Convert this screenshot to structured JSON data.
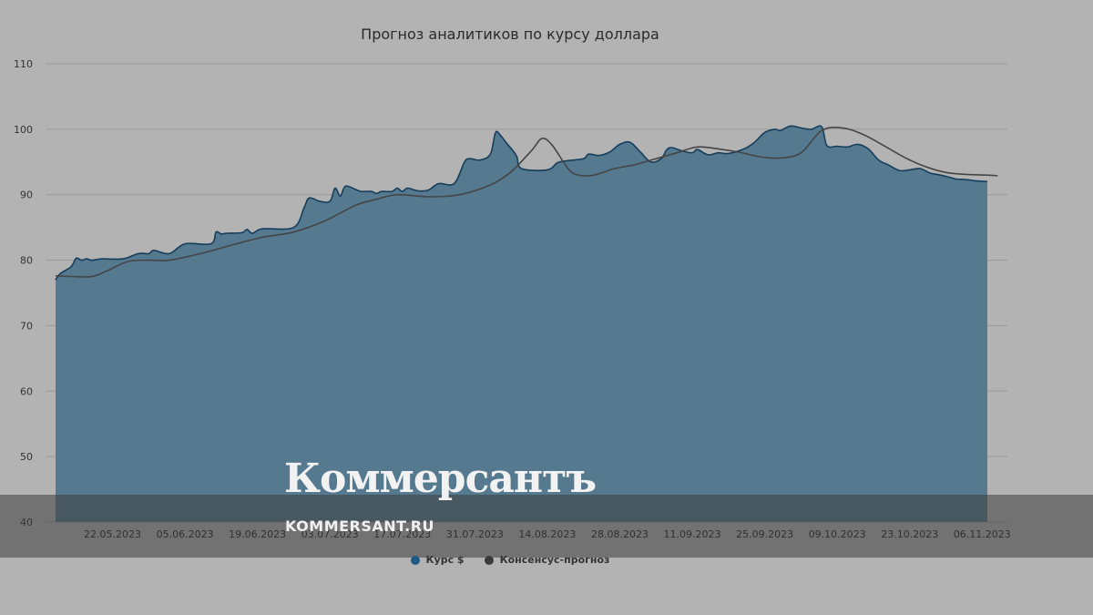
{
  "chart_data": {
    "type": "area",
    "title": "Прогноз аналитиков по курсу доллара",
    "ylim": [
      40,
      110
    ],
    "yticks": [
      40,
      50,
      60,
      70,
      80,
      90,
      100,
      110
    ],
    "grid": true,
    "legend_position": "bottom",
    "x_tick_labels": [
      "22.05.2023",
      "05.06.2023",
      "19.06.2023",
      "03.07.2023",
      "17.07.2023",
      "31.07.2023",
      "14.08.2023",
      "28.08.2023",
      "11.09.2023",
      "25.09.2023",
      "09.10.2023",
      "23.10.2023",
      "06.11.2023"
    ],
    "x_tick_day_index": [
      11,
      25,
      39,
      53,
      67,
      81,
      95,
      109,
      123,
      137,
      151,
      165,
      179
    ],
    "series": [
      {
        "name": "Курс $",
        "color": "#2e5a7c",
        "points": [
          [
            0,
            77.0
          ],
          [
            1,
            78.0
          ],
          [
            3,
            79.0
          ],
          [
            4,
            80.3
          ],
          [
            5,
            80.0
          ],
          [
            6,
            80.2
          ],
          [
            7,
            80.0
          ],
          [
            9,
            80.2
          ],
          [
            13,
            80.2
          ],
          [
            16,
            81.0
          ],
          [
            18,
            81.0
          ],
          [
            19,
            81.5
          ],
          [
            22,
            81.0
          ],
          [
            25,
            82.5
          ],
          [
            30,
            82.5
          ],
          [
            31,
            84.3
          ],
          [
            32,
            84.0
          ],
          [
            33,
            84.1
          ],
          [
            36,
            84.2
          ],
          [
            37,
            84.7
          ],
          [
            38,
            84.1
          ],
          [
            40,
            84.8
          ],
          [
            46,
            85.0
          ],
          [
            48,
            88.0
          ],
          [
            49,
            89.5
          ],
          [
            51,
            89.0
          ],
          [
            53,
            89.0
          ],
          [
            54,
            91.0
          ],
          [
            55,
            89.8
          ],
          [
            56,
            91.3
          ],
          [
            58,
            90.8
          ],
          [
            59,
            90.5
          ],
          [
            61,
            90.5
          ],
          [
            62,
            90.2
          ],
          [
            63,
            90.5
          ],
          [
            65,
            90.5
          ],
          [
            66,
            91.0
          ],
          [
            67,
            90.5
          ],
          [
            68,
            91.0
          ],
          [
            70,
            90.6
          ],
          [
            72,
            90.7
          ],
          [
            74,
            91.7
          ],
          [
            77,
            91.7
          ],
          [
            79,
            95.0
          ],
          [
            80,
            95.5
          ],
          [
            82,
            95.3
          ],
          [
            84,
            96.2
          ],
          [
            85,
            99.5
          ],
          [
            86,
            99.0
          ],
          [
            87,
            98.0
          ],
          [
            89,
            96.0
          ],
          [
            90,
            94.0
          ],
          [
            95,
            93.8
          ],
          [
            97,
            94.9
          ],
          [
            99,
            95.2
          ],
          [
            102,
            95.5
          ],
          [
            103,
            96.2
          ],
          [
            105,
            96.0
          ],
          [
            107,
            96.5
          ],
          [
            109,
            97.7
          ],
          [
            111,
            98.0
          ],
          [
            113,
            96.5
          ],
          [
            115,
            95.0
          ],
          [
            117,
            95.5
          ],
          [
            118,
            96.8
          ],
          [
            119,
            97.2
          ],
          [
            121,
            96.7
          ],
          [
            123,
            96.4
          ],
          [
            124,
            96.9
          ],
          [
            126,
            96.1
          ],
          [
            128,
            96.4
          ],
          [
            130,
            96.3
          ],
          [
            133,
            97.0
          ],
          [
            135,
            98.0
          ],
          [
            137,
            99.5
          ],
          [
            139,
            100.0
          ],
          [
            140,
            99.8
          ],
          [
            142,
            100.5
          ],
          [
            144,
            100.2
          ],
          [
            146,
            100.0
          ],
          [
            148,
            100.4
          ],
          [
            149,
            97.5
          ],
          [
            151,
            97.4
          ],
          [
            153,
            97.3
          ],
          [
            155,
            97.7
          ],
          [
            157,
            97.0
          ],
          [
            159,
            95.3
          ],
          [
            161,
            94.5
          ],
          [
            163,
            93.7
          ],
          [
            165,
            93.8
          ],
          [
            167,
            94.0
          ],
          [
            169,
            93.3
          ],
          [
            171,
            93.0
          ],
          [
            173,
            92.6
          ],
          [
            174,
            92.4
          ],
          [
            176,
            92.3
          ],
          [
            178,
            92.1
          ],
          [
            180,
            92.0
          ]
        ]
      },
      {
        "name": "Консенсус-прогноз",
        "color": "#474747",
        "points": [
          [
            0,
            77.6
          ],
          [
            3,
            77.5
          ],
          [
            7,
            77.5
          ],
          [
            10,
            78.4
          ],
          [
            14,
            79.8
          ],
          [
            18,
            80.0
          ],
          [
            22,
            80.0
          ],
          [
            28,
            81.0
          ],
          [
            34,
            82.3
          ],
          [
            40,
            83.5
          ],
          [
            46,
            84.3
          ],
          [
            52,
            86.0
          ],
          [
            58,
            88.4
          ],
          [
            62,
            89.3
          ],
          [
            66,
            90.0
          ],
          [
            72,
            89.7
          ],
          [
            78,
            90.0
          ],
          [
            84,
            91.5
          ],
          [
            88,
            93.5
          ],
          [
            92,
            96.8
          ],
          [
            94,
            98.6
          ],
          [
            96,
            97.5
          ],
          [
            99,
            94.0
          ],
          [
            101,
            93.0
          ],
          [
            104,
            93.0
          ],
          [
            108,
            94.0
          ],
          [
            112,
            94.6
          ],
          [
            116,
            95.5
          ],
          [
            120,
            96.4
          ],
          [
            124,
            97.3
          ],
          [
            128,
            97.0
          ],
          [
            132,
            96.5
          ],
          [
            136,
            95.8
          ],
          [
            140,
            95.6
          ],
          [
            144,
            96.4
          ],
          [
            148,
            99.8
          ],
          [
            152,
            100.2
          ],
          [
            156,
            99.2
          ],
          [
            160,
            97.5
          ],
          [
            164,
            95.7
          ],
          [
            168,
            94.3
          ],
          [
            172,
            93.4
          ],
          [
            176,
            93.1
          ],
          [
            180,
            93.0
          ],
          [
            182,
            92.9
          ]
        ]
      }
    ]
  },
  "watermark": {
    "logo_text": "Коммерсантъ",
    "url_text": "KOMMERSANT.RU"
  }
}
